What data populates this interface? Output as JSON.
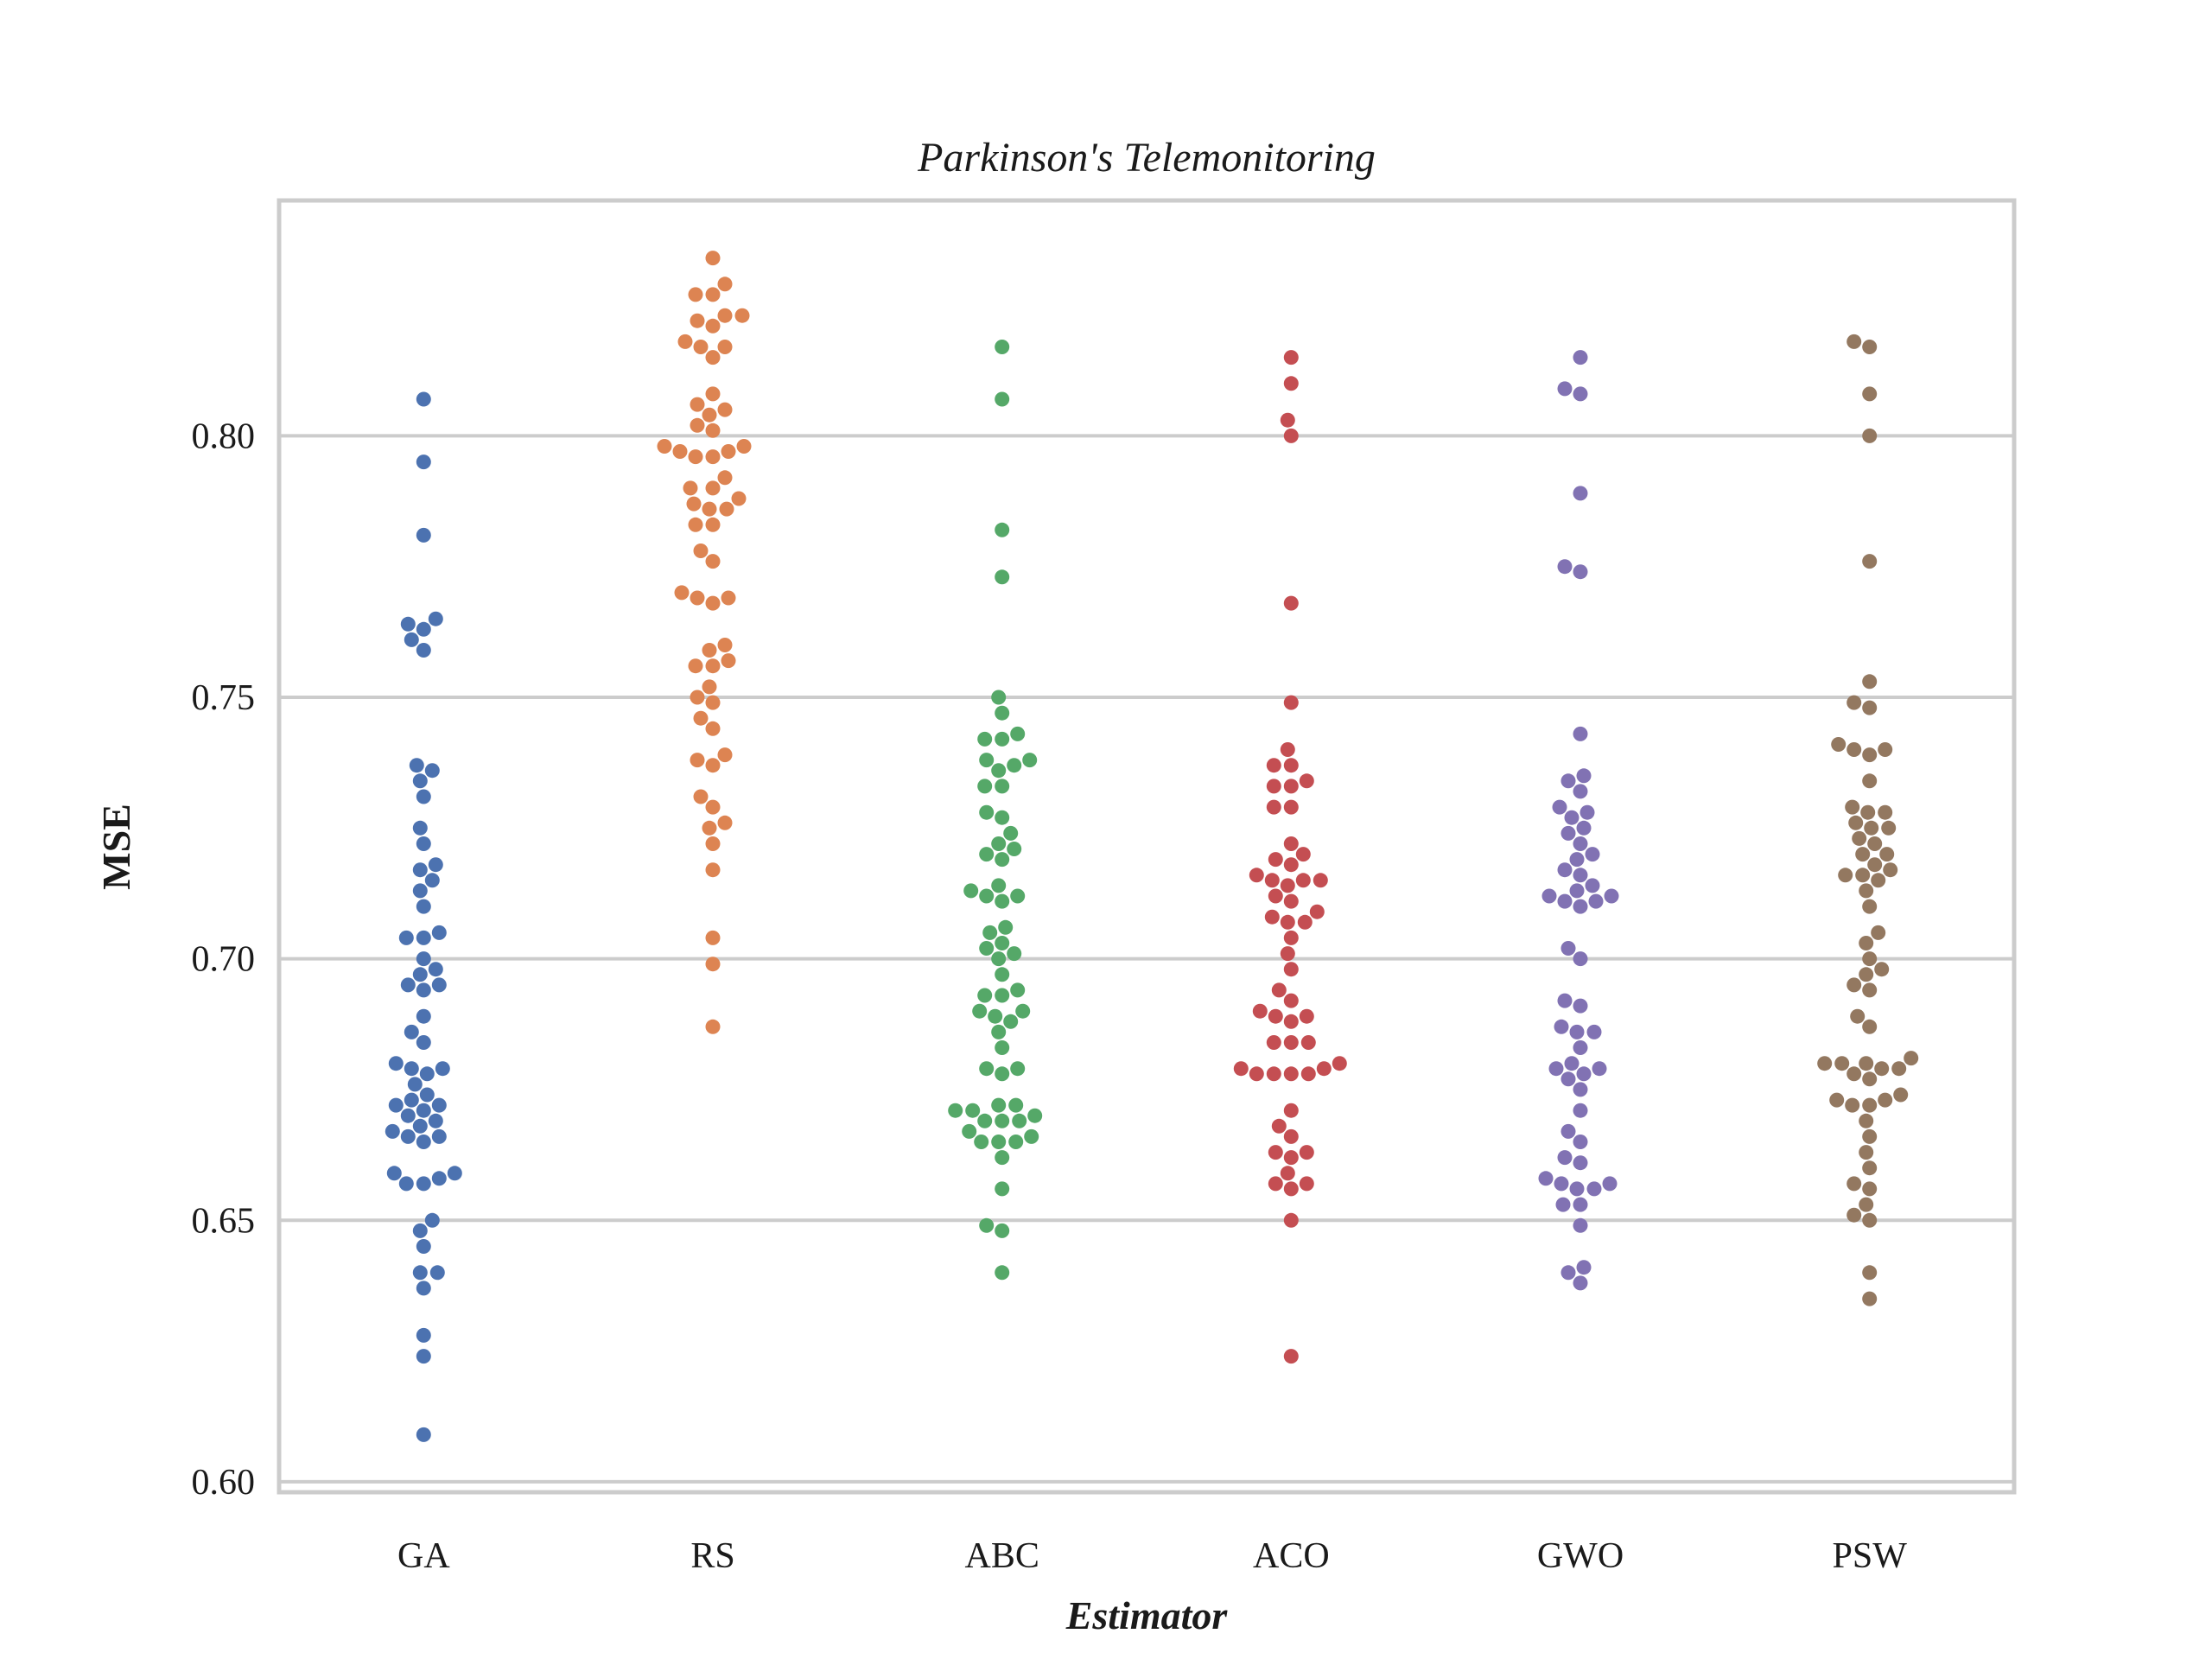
{
  "chart_data": {
    "type": "scatter",
    "subtype": "swarm",
    "title": "Parkinson's Telemonitoring",
    "xlabel": "Estimator",
    "ylabel": "MSE",
    "ylim": [
      0.598,
      0.845
    ],
    "yticks": [
      0.6,
      0.65,
      0.7,
      0.75,
      0.8
    ],
    "ytick_labels": [
      "0.60",
      "0.65",
      "0.70",
      "0.75",
      "0.80"
    ],
    "grid": "horizontal",
    "categories": [
      "GA",
      "RS",
      "ABC",
      "ACO",
      "GWO",
      "PSW"
    ],
    "colors": [
      "#4c72b0",
      "#dd8452",
      "#55a868",
      "#c44e52",
      "#8172b3",
      "#937860"
    ],
    "series": [
      {
        "category": "GA",
        "values": [
          0.807,
          0.795,
          0.781,
          0.765,
          0.764,
          0.763,
          0.761,
          0.759,
          0.737,
          0.736,
          0.734,
          0.731,
          0.725,
          0.722,
          0.718,
          0.717,
          0.715,
          0.713,
          0.71,
          0.705,
          0.704,
          0.704,
          0.7,
          0.698,
          0.697,
          0.695,
          0.695,
          0.694,
          0.689,
          0.686,
          0.684,
          0.68,
          0.679,
          0.679,
          0.678,
          0.676,
          0.674,
          0.673,
          0.672,
          0.672,
          0.671,
          0.67,
          0.669,
          0.668,
          0.667,
          0.666,
          0.666,
          0.665,
          0.659,
          0.659,
          0.658,
          0.657,
          0.657,
          0.65,
          0.648,
          0.645,
          0.64,
          0.64,
          0.637,
          0.628,
          0.624,
          0.609
        ]
      },
      {
        "category": "RS",
        "values": [
          0.834,
          0.829,
          0.827,
          0.827,
          0.823,
          0.823,
          0.822,
          0.821,
          0.818,
          0.817,
          0.817,
          0.815,
          0.808,
          0.806,
          0.805,
          0.804,
          0.802,
          0.801,
          0.798,
          0.798,
          0.797,
          0.797,
          0.796,
          0.796,
          0.792,
          0.79,
          0.79,
          0.788,
          0.787,
          0.786,
          0.786,
          0.783,
          0.783,
          0.778,
          0.776,
          0.77,
          0.769,
          0.769,
          0.768,
          0.76,
          0.759,
          0.757,
          0.756,
          0.756,
          0.752,
          0.75,
          0.749,
          0.746,
          0.744,
          0.739,
          0.738,
          0.737,
          0.731,
          0.729,
          0.726,
          0.725,
          0.722,
          0.717,
          0.704,
          0.699,
          0.687
        ]
      },
      {
        "category": "ABC",
        "values": [
          0.817,
          0.807,
          0.782,
          0.773,
          0.75,
          0.747,
          0.743,
          0.742,
          0.742,
          0.738,
          0.738,
          0.737,
          0.736,
          0.733,
          0.733,
          0.728,
          0.727,
          0.724,
          0.722,
          0.721,
          0.72,
          0.719,
          0.714,
          0.713,
          0.712,
          0.712,
          0.711,
          0.706,
          0.705,
          0.703,
          0.702,
          0.701,
          0.7,
          0.697,
          0.694,
          0.693,
          0.693,
          0.69,
          0.69,
          0.689,
          0.688,
          0.686,
          0.683,
          0.679,
          0.679,
          0.678,
          0.672,
          0.672,
          0.671,
          0.671,
          0.67,
          0.669,
          0.669,
          0.669,
          0.667,
          0.666,
          0.665,
          0.665,
          0.665,
          0.662,
          0.656,
          0.649,
          0.648,
          0.64
        ]
      },
      {
        "category": "ACO",
        "values": [
          0.815,
          0.81,
          0.803,
          0.8,
          0.768,
          0.749,
          0.74,
          0.737,
          0.737,
          0.734,
          0.733,
          0.733,
          0.729,
          0.729,
          0.722,
          0.72,
          0.719,
          0.718,
          0.716,
          0.715,
          0.715,
          0.715,
          0.714,
          0.712,
          0.711,
          0.709,
          0.708,
          0.707,
          0.707,
          0.704,
          0.701,
          0.698,
          0.694,
          0.692,
          0.69,
          0.689,
          0.689,
          0.688,
          0.684,
          0.684,
          0.684,
          0.68,
          0.679,
          0.679,
          0.678,
          0.678,
          0.678,
          0.678,
          0.671,
          0.668,
          0.666,
          0.663,
          0.663,
          0.662,
          0.659,
          0.657,
          0.657,
          0.656,
          0.65,
          0.624
        ]
      },
      {
        "category": "GWO",
        "values": [
          0.815,
          0.809,
          0.808,
          0.789,
          0.775,
          0.774,
          0.743,
          0.735,
          0.734,
          0.732,
          0.729,
          0.728,
          0.727,
          0.725,
          0.724,
          0.722,
          0.72,
          0.719,
          0.717,
          0.716,
          0.714,
          0.713,
          0.712,
          0.712,
          0.711,
          0.711,
          0.71,
          0.702,
          0.7,
          0.692,
          0.691,
          0.687,
          0.686,
          0.686,
          0.683,
          0.68,
          0.679,
          0.679,
          0.678,
          0.677,
          0.675,
          0.671,
          0.667,
          0.665,
          0.662,
          0.661,
          0.658,
          0.657,
          0.657,
          0.656,
          0.656,
          0.653,
          0.653,
          0.649,
          0.641,
          0.64,
          0.638
        ]
      },
      {
        "category": "PSW",
        "values": [
          0.818,
          0.817,
          0.808,
          0.8,
          0.776,
          0.753,
          0.749,
          0.748,
          0.741,
          0.74,
          0.74,
          0.739,
          0.734,
          0.729,
          0.728,
          0.728,
          0.726,
          0.725,
          0.725,
          0.723,
          0.722,
          0.72,
          0.72,
          0.718,
          0.717,
          0.716,
          0.716,
          0.715,
          0.713,
          0.71,
          0.705,
          0.703,
          0.7,
          0.698,
          0.697,
          0.695,
          0.694,
          0.689,
          0.687,
          0.681,
          0.68,
          0.68,
          0.68,
          0.679,
          0.679,
          0.678,
          0.677,
          0.674,
          0.673,
          0.673,
          0.672,
          0.672,
          0.669,
          0.666,
          0.663,
          0.66,
          0.657,
          0.656,
          0.653,
          0.651,
          0.65,
          0.64,
          0.635
        ]
      }
    ]
  }
}
